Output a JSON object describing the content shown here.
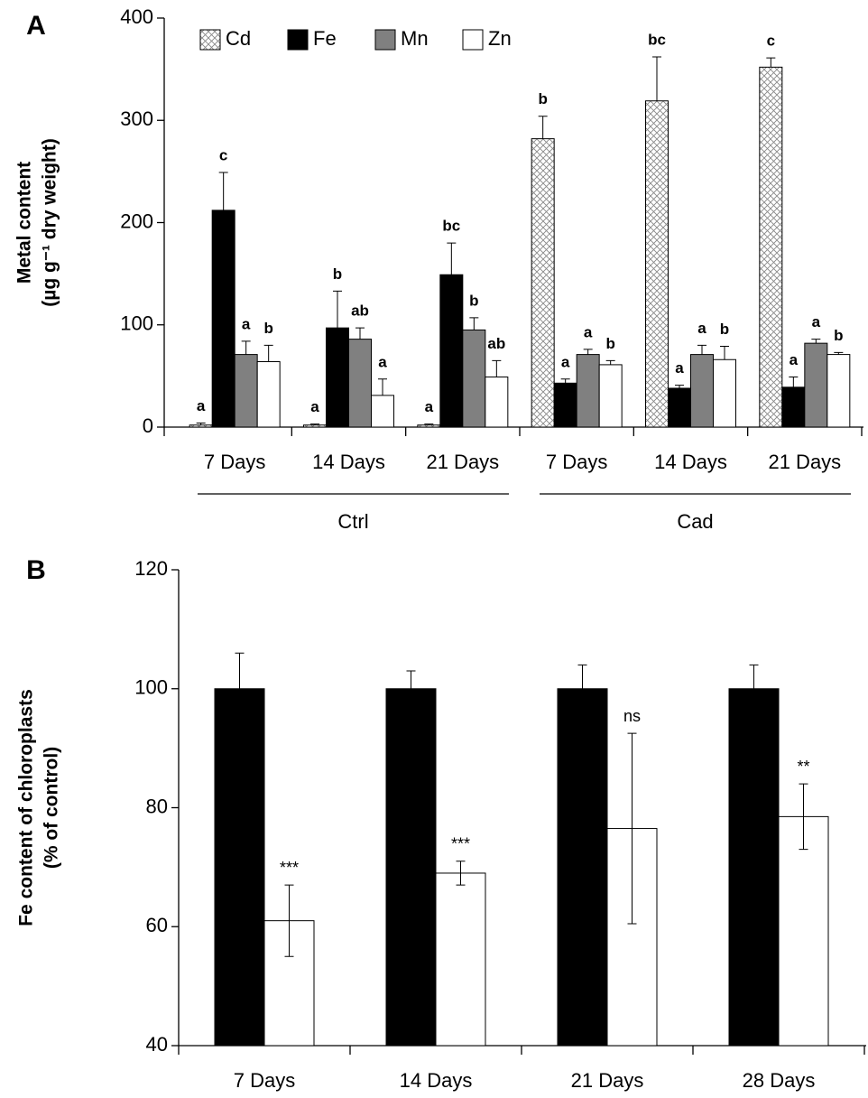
{
  "chart_data": [
    {
      "type": "bar",
      "panel": "A",
      "ylabel": [
        "Metal content",
        "(µg g⁻¹ dry weight)"
      ],
      "categories": [
        "7 Days",
        "14 Days",
        "21 Days",
        "7 Days",
        "14 Days",
        "21 Days"
      ],
      "groups": [
        "Ctrl",
        "Cad"
      ],
      "series": [
        {
          "name": "Cd",
          "color": "#888888",
          "pattern": "crosshatch",
          "values": [
            2,
            2,
            2,
            282,
            319,
            352
          ],
          "errors": [
            2,
            1,
            1,
            22,
            43,
            9
          ],
          "labels": [
            "a",
            "a",
            "a",
            "b",
            "bc",
            "c"
          ]
        },
        {
          "name": "Fe",
          "color": "#000000",
          "values": [
            212,
            97,
            149,
            43,
            38,
            39
          ],
          "errors": [
            37,
            36,
            31,
            4,
            3,
            10
          ],
          "labels": [
            "c",
            "b",
            "bc",
            "a",
            "a",
            "a"
          ]
        },
        {
          "name": "Mn",
          "color": "#808080",
          "values": [
            71,
            86,
            95,
            71,
            71,
            82
          ],
          "errors": [
            13,
            11,
            12,
            5,
            9,
            4
          ],
          "labels": [
            "a",
            "ab",
            "b",
            "a",
            "a",
            "a"
          ]
        },
        {
          "name": "Zn",
          "color": "#ffffff",
          "values": [
            64,
            31,
            49,
            61,
            66,
            71
          ],
          "errors": [
            16,
            16,
            16,
            4,
            13,
            2
          ],
          "labels": [
            "b",
            "a",
            "ab",
            "b",
            "b",
            "b"
          ]
        }
      ],
      "ylim": [
        0,
        400
      ],
      "yticks": [
        0,
        100,
        200,
        300,
        400
      ],
      "legend": "top-left"
    },
    {
      "type": "bar",
      "panel": "B",
      "ylabel": [
        "Fe content of chloroplasts",
        "(% of control)"
      ],
      "categories": [
        "7 Days",
        "14 Days",
        "21 Days",
        "28 Days"
      ],
      "series": [
        {
          "color": "#000000",
          "values": [
            100,
            100,
            100,
            100
          ],
          "errors": [
            6,
            3,
            4,
            4
          ]
        },
        {
          "color": "#ffffff",
          "values": [
            61,
            69,
            76.5,
            78.5
          ],
          "errors": [
            6,
            2,
            16,
            5.5
          ],
          "labels": [
            "***",
            "***",
            "ns",
            "**"
          ]
        }
      ],
      "ylim": [
        40,
        120
      ],
      "yticks": [
        40,
        60,
        80,
        100,
        120
      ]
    }
  ]
}
